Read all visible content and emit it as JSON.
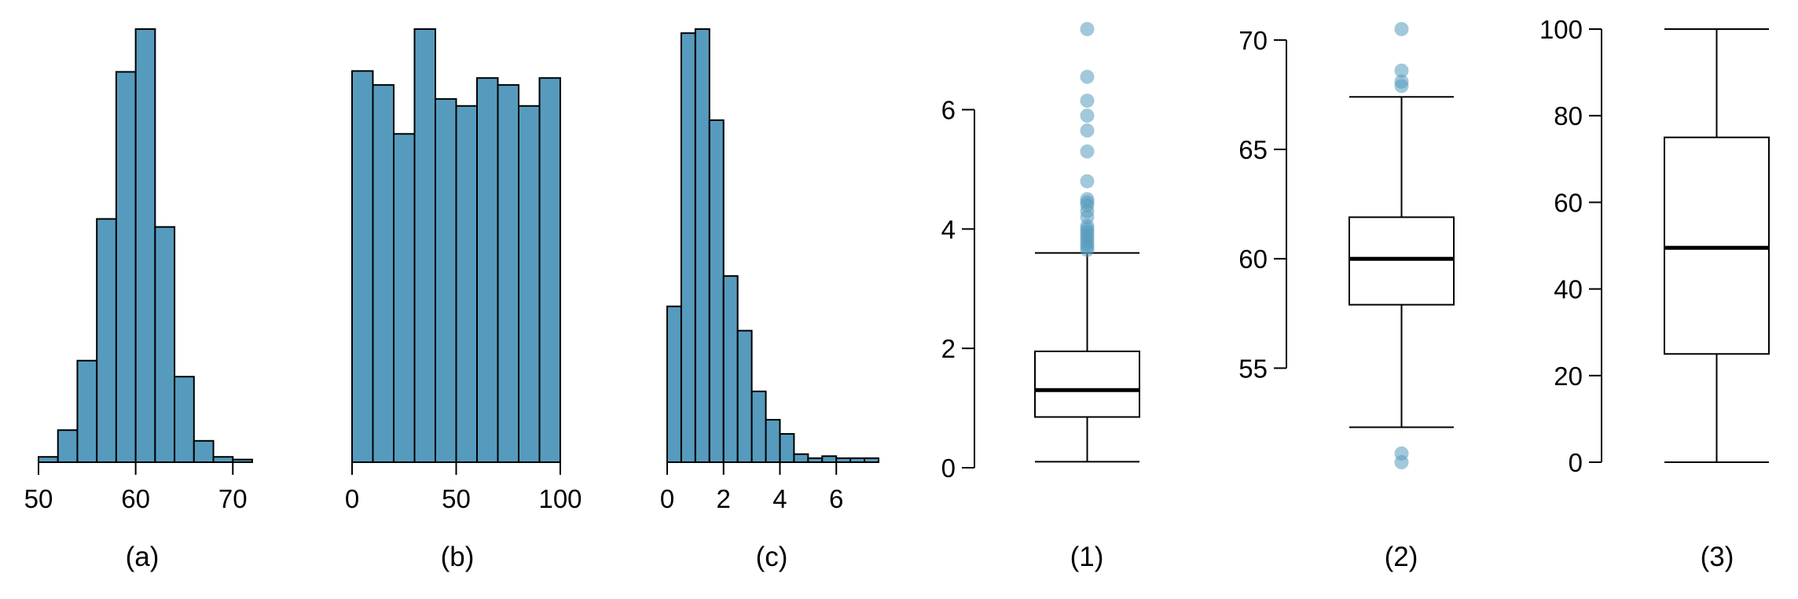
{
  "colors": {
    "bar_fill": "#569bbd",
    "outline": "#000000",
    "outlier_fill": "#569bbd"
  },
  "chart_data": [
    {
      "type": "bar",
      "id": "hist-a",
      "panel_label": "(a)",
      "bin_edges": [
        50,
        52,
        54,
        56,
        58,
        60,
        62,
        64,
        66,
        68,
        70,
        72
      ],
      "values": [
        2,
        12,
        38,
        91,
        146,
        162,
        88,
        32,
        8,
        2,
        1
      ],
      "xlim": [
        50,
        72
      ],
      "ylim": [
        0,
        162
      ],
      "x_ticks": [
        50,
        60,
        70
      ],
      "x_tick_labels": [
        "50",
        "60",
        "70"
      ],
      "y_axis_shown": false
    },
    {
      "type": "bar",
      "id": "hist-b",
      "panel_label": "(b)",
      "bin_edges": [
        0,
        10,
        20,
        30,
        40,
        50,
        60,
        70,
        80,
        90,
        100
      ],
      "values": [
        56,
        54,
        47,
        62,
        52,
        51,
        55,
        54,
        51,
        55
      ],
      "xlim": [
        0,
        100
      ],
      "ylim": [
        0,
        62
      ],
      "x_ticks": [
        0,
        50,
        100
      ],
      "x_tick_labels": [
        "0",
        "50",
        "100"
      ],
      "y_axis_shown": false
    },
    {
      "type": "bar",
      "id": "hist-c",
      "panel_label": "(c)",
      "bin_edges": [
        0,
        0.5,
        1,
        1.5,
        2,
        2.5,
        3,
        3.5,
        4,
        4.5,
        5,
        5.5,
        6,
        6.5,
        7,
        7.5
      ],
      "values": [
        77,
        212,
        214,
        169,
        92,
        65,
        35,
        21,
        14,
        4,
        2,
        3,
        2,
        2,
        2
      ],
      "xlim": [
        0,
        7.5
      ],
      "ylim": [
        0,
        214
      ],
      "x_ticks": [
        0,
        2,
        4,
        6
      ],
      "x_tick_labels": [
        "0",
        "2",
        "4",
        "6"
      ],
      "y_axis_shown": false
    },
    {
      "type": "box",
      "id": "box-1",
      "panel_label": "(1)",
      "whisker_low": 0.1,
      "q1": 0.85,
      "median": 1.3,
      "q3": 1.95,
      "whisker_high": 3.6,
      "outliers": [
        3.65,
        3.7,
        3.75,
        3.8,
        3.85,
        3.9,
        3.95,
        4.0,
        4.05,
        4.2,
        4.3,
        4.4,
        4.45,
        4.5,
        4.8,
        5.3,
        5.65,
        5.9,
        6.15,
        6.55,
        7.35
      ],
      "ylim": [
        0,
        7.35
      ],
      "y_ticks": [
        0,
        2,
        4,
        6
      ],
      "y_tick_labels": [
        "0",
        "2",
        "4",
        "6"
      ]
    },
    {
      "type": "box",
      "id": "box-2",
      "panel_label": "(2)",
      "whisker_low": 52.3,
      "q1": 57.9,
      "median": 60.0,
      "q3": 61.9,
      "whisker_high": 67.4,
      "outliers": [
        50.7,
        51.1,
        67.9,
        68.1,
        68.6,
        70.5
      ],
      "ylim": [
        50.7,
        70.5
      ],
      "y_ticks": [
        55,
        60,
        65,
        70
      ],
      "y_tick_labels": [
        "55",
        "60",
        "65",
        "70"
      ]
    },
    {
      "type": "box",
      "id": "box-3",
      "panel_label": "(3)",
      "whisker_low": 0,
      "q1": 25,
      "median": 49.5,
      "q3": 75,
      "whisker_high": 100,
      "outliers": [],
      "ylim": [
        0,
        100
      ],
      "y_ticks": [
        0,
        20,
        40,
        60,
        80,
        100
      ],
      "y_tick_labels": [
        "0",
        "20",
        "40",
        "60",
        "80",
        "100"
      ]
    }
  ]
}
